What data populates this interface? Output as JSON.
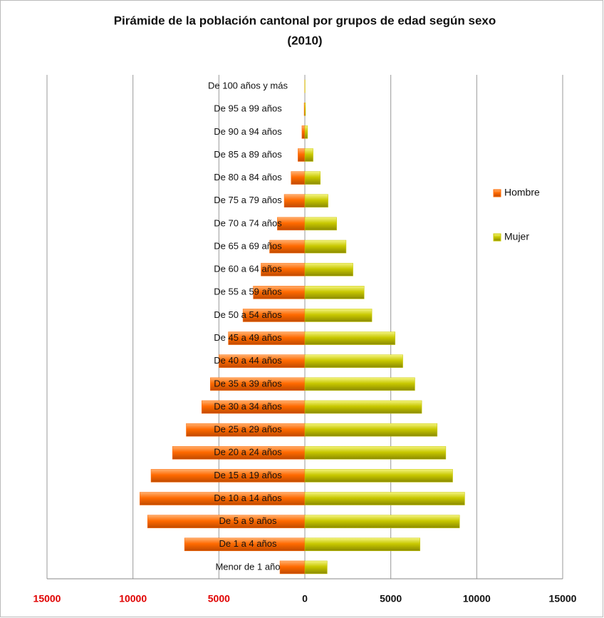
{
  "chart_data": {
    "type": "pyramid",
    "title": "Pirámide de la población cantonal por grupos de edad según sexo",
    "subtitle": "(2010)",
    "categories": [
      "Menor de 1 año",
      "De 1 a 4 años",
      "De 5 a 9 años",
      "De 10 a 14 años",
      "De 15 a 19 años",
      "De 20 a 24 años",
      "De 25 a 29 años",
      "De 30 a 34 años",
      "De 35 a 39 años",
      "De 40 a 44 años",
      "De 45 a 49 años",
      "De 50 a 54 años",
      "De 55 a 59 años",
      "De 60 a 64 años",
      "De 65 a 69 años",
      "De 70 a 74 años",
      "De 75 a 79 años",
      "De 80 a 84 años",
      "De 85 a 89 años",
      "De 90 a 94 años",
      "De 95 a 99 años",
      "De 100 años y más"
    ],
    "series": [
      {
        "name": "Hombre",
        "color": "#ff6a00",
        "values": [
          -1450,
          -7000,
          -9150,
          -9600,
          -8950,
          -7700,
          -6900,
          -6000,
          -5500,
          -5000,
          -4450,
          -3600,
          -3000,
          -2550,
          -2050,
          -1600,
          -1200,
          -800,
          -400,
          -170,
          -40,
          -10
        ]
      },
      {
        "name": "Mujer",
        "color": "#c8c800",
        "values": [
          1300,
          6700,
          9000,
          9300,
          8600,
          8200,
          7700,
          6800,
          6400,
          5700,
          5250,
          3900,
          3450,
          2800,
          2400,
          1850,
          1350,
          900,
          480,
          160,
          40,
          15
        ]
      }
    ],
    "xlim": [
      -15000,
      15000
    ],
    "xticks": [
      {
        "value": -15000,
        "label": "15000"
      },
      {
        "value": -10000,
        "label": "10000"
      },
      {
        "value": -5000,
        "label": "5000"
      },
      0,
      5000,
      10000,
      15000
    ],
    "negative_tick_color": "#e00000",
    "grid": true,
    "legend": "right"
  }
}
